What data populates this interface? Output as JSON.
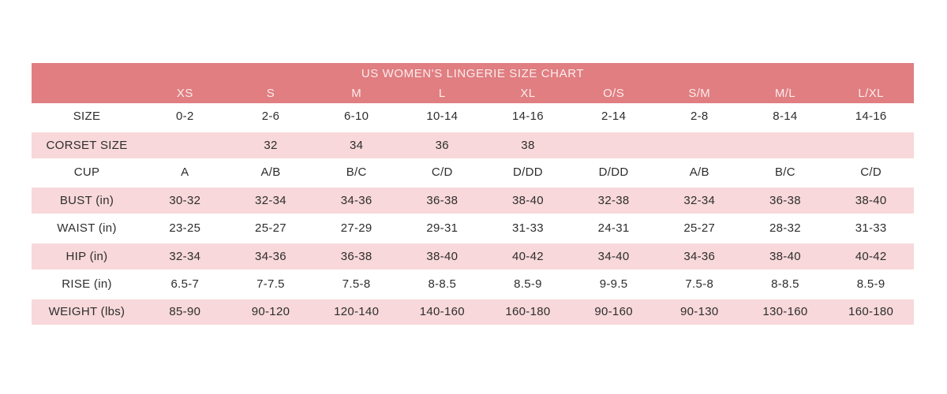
{
  "chart_data": {
    "type": "table",
    "title": "US WOMEN'S LINGERIE SIZE CHART",
    "columns": [
      "XS",
      "S",
      "M",
      "L",
      "XL",
      "O/S",
      "S/M",
      "M/L",
      "L/XL"
    ],
    "rows": [
      {
        "label": "SIZE",
        "values": [
          "0-2",
          "2-6",
          "6-10",
          "10-14",
          "14-16",
          "2-14",
          "2-8",
          "8-14",
          "14-16"
        ]
      },
      {
        "label": "CORSET SIZE",
        "values": [
          "",
          "32",
          "34",
          "36",
          "38",
          "",
          "",
          "",
          ""
        ]
      },
      {
        "label": "CUP",
        "values": [
          "A",
          "A/B",
          "B/C",
          "C/D",
          "D/DD",
          "D/DD",
          "A/B",
          "B/C",
          "C/D"
        ]
      },
      {
        "label": "BUST (in)",
        "values": [
          "30-32",
          "32-34",
          "34-36",
          "36-38",
          "38-40",
          "32-38",
          "32-34",
          "36-38",
          "38-40"
        ]
      },
      {
        "label": "WAIST (in)",
        "values": [
          "23-25",
          "25-27",
          "27-29",
          "29-31",
          "31-33",
          "24-31",
          "25-27",
          "28-32",
          "31-33"
        ]
      },
      {
        "label": "HIP (in)",
        "values": [
          "32-34",
          "34-36",
          "36-38",
          "38-40",
          "40-42",
          "34-40",
          "34-36",
          "38-40",
          "40-42"
        ]
      },
      {
        "label": "RISE (in)",
        "values": [
          "6.5-7",
          "7-7.5",
          "7.5-8",
          "8-8.5",
          "8.5-9",
          "9-9.5",
          "7.5-8",
          "8-8.5",
          "8.5-9"
        ]
      },
      {
        "label": "WEIGHT (lbs)",
        "values": [
          "85-90",
          "90-120",
          "120-140",
          "140-160",
          "160-180",
          "90-160",
          "90-130",
          "130-160",
          "160-180"
        ]
      }
    ],
    "layout": {
      "legend": "none",
      "grid": "off",
      "row_banding": "alternating white/pink"
    }
  },
  "colors": {
    "header_bg": "#e07e81",
    "header_text": "#fcecec",
    "row_pink_bg": "#f8d8da",
    "row_white_bg": "#ffffff",
    "text": "#2d2d2d",
    "page_bg": "#ffffff"
  }
}
